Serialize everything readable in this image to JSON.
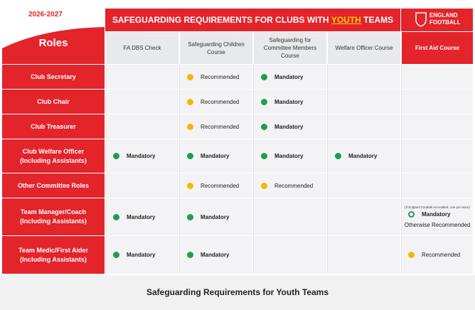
{
  "header": {
    "season": "2026-2027",
    "title_before": "SAFEGUARDING REQUIREMENTS FOR CLUBS WITH ",
    "title_highlight": "YOUTH",
    "title_after": " TEAMS",
    "logo_line1": "ENGLAND",
    "logo_line2": "FOOTBALL"
  },
  "table": {
    "corner": "Roles",
    "columns": [
      "FA DBS Check",
      "Safeguarding Children Course",
      "Safeguarding for Committee Members Course",
      "Welfare Officer Course",
      "First Aid Course"
    ],
    "rows": [
      {
        "role": [
          "Club Secretary"
        ],
        "cells": [
          null,
          {
            "text": "Recommended",
            "marker": "amber"
          },
          {
            "text": "Mandatory",
            "marker": "green"
          },
          null,
          null
        ]
      },
      {
        "role": [
          "Club Chair"
        ],
        "cells": [
          null,
          {
            "text": "Recommended",
            "marker": "amber"
          },
          {
            "text": "Mandatory",
            "marker": "green"
          },
          null,
          null
        ]
      },
      {
        "role": [
          "Club Treasurer"
        ],
        "cells": [
          null,
          {
            "text": "Recommended",
            "marker": "amber"
          },
          {
            "text": "Mandatory",
            "marker": "green"
          },
          null,
          null
        ]
      },
      {
        "role": [
          "Club Welfare Officer",
          "(Including Assistants)"
        ],
        "cells": [
          {
            "text": "Mandatory",
            "marker": "green"
          },
          {
            "text": "Mandatory",
            "marker": "green"
          },
          {
            "text": "Mandatory",
            "marker": "green"
          },
          {
            "text": "Mandatory",
            "marker": "green"
          },
          null
        ]
      },
      {
        "role": [
          "Other Committee Roles"
        ],
        "cells": [
          null,
          {
            "text": "Recommended",
            "marker": "amber"
          },
          {
            "text": "Recommended",
            "marker": "amber"
          },
          null,
          null
        ]
      },
      {
        "role": [
          "Team Manager/Coach",
          "(Including Assistants)"
        ],
        "cells": [
          {
            "text": "Mandatory",
            "marker": "green"
          },
          {
            "text": "Mandatory",
            "marker": "green"
          },
          null,
          null,
          {
            "note": "(If England Football Accredited, one per team)",
            "text": "Mandatory",
            "marker": "outline",
            "extra": "Otherwise Recommended"
          }
        ]
      },
      {
        "role": [
          "Team Medic/First Aider",
          "(Including Assistants)"
        ],
        "cells": [
          {
            "text": "Mandatory",
            "marker": "green"
          },
          {
            "text": "Mandatory",
            "marker": "green"
          },
          null,
          null,
          {
            "text": "Recommended",
            "marker": "amber"
          }
        ]
      }
    ]
  },
  "caption": "Safeguarding Requirements for Youth Teams"
}
